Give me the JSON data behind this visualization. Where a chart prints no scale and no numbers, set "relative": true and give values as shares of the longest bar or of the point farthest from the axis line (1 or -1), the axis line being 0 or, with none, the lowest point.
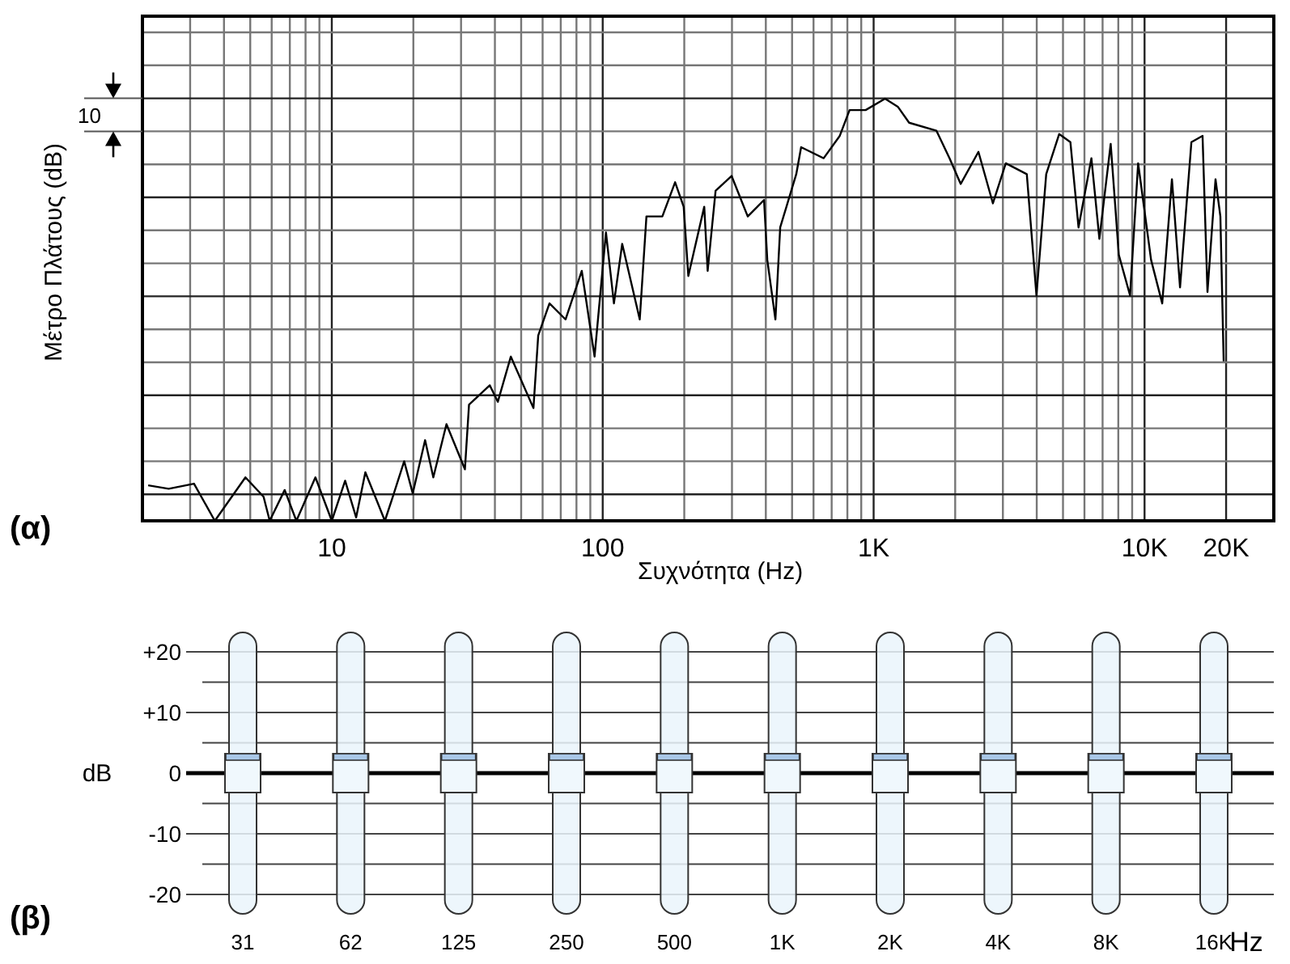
{
  "chart_data": [
    {
      "type": "line",
      "xlabel": "Συχνότητα (Hz)",
      "ylabel": "Μέτρο Πλάτους (dB)",
      "relative": true,
      "log": "x",
      "grid": true,
      "marker": "none",
      "line_style": "solid",
      "xlim": [
        2,
        30000
      ],
      "xticks": [
        {
          "value": 2,
          "label": null
        },
        {
          "value": 3,
          "label": null
        },
        {
          "value": 4,
          "label": null
        },
        {
          "value": 5,
          "label": null
        },
        {
          "value": 6,
          "label": null
        },
        {
          "value": 7,
          "label": null
        },
        {
          "value": 8,
          "label": null
        },
        {
          "value": 9,
          "label": null
        },
        {
          "value": 10,
          "label": "10"
        },
        {
          "value": 20,
          "label": null
        },
        {
          "value": 30,
          "label": null
        },
        {
          "value": 40,
          "label": null
        },
        {
          "value": 50,
          "label": null
        },
        {
          "value": 60,
          "label": null
        },
        {
          "value": 70,
          "label": null
        },
        {
          "value": 80,
          "label": null
        },
        {
          "value": 90,
          "label": null
        },
        {
          "value": 100,
          "label": "100"
        },
        {
          "value": 200,
          "label": null
        },
        {
          "value": 300,
          "label": null
        },
        {
          "value": 400,
          "label": null
        },
        {
          "value": 500,
          "label": null
        },
        {
          "value": 600,
          "label": null
        },
        {
          "value": 700,
          "label": null
        },
        {
          "value": 800,
          "label": null
        },
        {
          "value": 900,
          "label": null
        },
        {
          "value": 1000,
          "label": "1K"
        },
        {
          "value": 2000,
          "label": null
        },
        {
          "value": 3000,
          "label": null
        },
        {
          "value": 4000,
          "label": null
        },
        {
          "value": 5000,
          "label": null
        },
        {
          "value": 6000,
          "label": null
        },
        {
          "value": 7000,
          "label": null
        },
        {
          "value": 8000,
          "label": null
        },
        {
          "value": 9000,
          "label": null
        },
        {
          "value": 10000,
          "label": "10K"
        },
        {
          "value": 20000,
          "label": "20K"
        }
      ],
      "annotations": [
        "(α)",
        "10"
      ],
      "series": [
        {
          "color": "#000000",
          "x": [
            2.1,
            2.5,
            3.1,
            3.7,
            4.8,
            5.6,
            5.9,
            6.7,
            7.4,
            8.7,
            10,
            11.2,
            12.3,
            13.3,
            14.7,
            15.7,
            16.8,
            18.5,
            19.9,
            22.1,
            23.7,
            26.5,
            31,
            32.1,
            38.3,
            41,
            45.8,
            55.5,
            57.8,
            63.6,
            72.9,
            83.7,
            93.3,
            102.8,
            110,
            118,
            137,
            145,
            166,
            185,
            199,
            207,
            237,
            244,
            261,
            299,
            343,
            394,
            405,
            434,
            452,
            518,
            540,
            654,
            750,
            815,
            934,
            1102,
            1228,
            1352,
            1706,
            1905,
            2096,
            2437,
            2756,
            3075,
            3676,
            3990,
            4335,
            4839,
            5325,
            5705,
            6365,
            6812,
            7499,
            8035,
            8840,
            9470,
            10570,
            11620,
            12620,
            13520,
            14890,
            16370,
            17070,
            18280,
            19050,
            19590
          ],
          "values": [
            0.084,
            0.076,
            0.088,
            0,
            0.103,
            0.057,
            0,
            0.073,
            0,
            0.103,
            0,
            0.095,
            0.008,
            0.115,
            0.046,
            0,
            0.057,
            0.141,
            0.065,
            0.191,
            0.103,
            0.229,
            0.122,
            0.275,
            0.321,
            0.282,
            0.389,
            0.267,
            0.439,
            0.515,
            0.477,
            0.592,
            0.389,
            0.683,
            0.515,
            0.656,
            0.477,
            0.721,
            0.721,
            0.802,
            0.744,
            0.58,
            0.744,
            0.592,
            0.782,
            0.817,
            0.721,
            0.76,
            0.618,
            0.477,
            0.695,
            0.821,
            0.885,
            0.859,
            0.912,
            0.973,
            0.973,
            1,
            0.981,
            0.943,
            0.924,
            0.859,
            0.798,
            0.874,
            0.752,
            0.847,
            0.821,
            0.534,
            0.821,
            0.916,
            0.897,
            0.695,
            0.859,
            0.668,
            0.893,
            0.63,
            0.534,
            0.847,
            0.618,
            0.515,
            0.809,
            0.553,
            0.897,
            0.912,
            0.542,
            0.809,
            0.721,
            0.378
          ]
        }
      ]
    },
    {
      "type": "scatter",
      "ylabel": "dB",
      "xlabel": "Hz",
      "marker": "square",
      "grid": "y",
      "categories": [
        "31",
        "62",
        "125",
        "250",
        "500",
        "1K",
        "2K",
        "4K",
        "8K",
        "16K"
      ],
      "ylim": [
        -20,
        20
      ],
      "yticks": [
        {
          "value": 20,
          "label": "+20"
        },
        {
          "value": 15,
          "label": null
        },
        {
          "value": 10,
          "label": "+10"
        },
        {
          "value": 5,
          "label": null
        },
        0,
        {
          "value": -5,
          "label": null
        },
        -10,
        {
          "value": -15,
          "label": null
        },
        -20
      ],
      "ref_lines": [
        {
          "axis": "y",
          "value": 0,
          "color": "#000000"
        }
      ],
      "annotations": [
        "(β)"
      ],
      "series": [
        {
          "color": "#f0f8fd",
          "values": [
            0,
            0,
            0,
            0,
            0,
            0,
            0,
            0,
            0,
            0
          ]
        }
      ]
    }
  ]
}
